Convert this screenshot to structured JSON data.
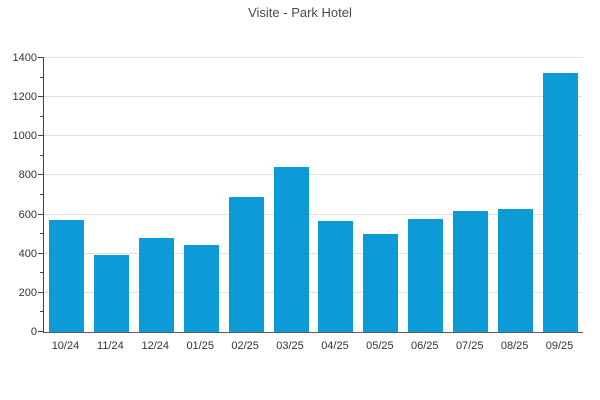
{
  "chart_data": {
    "type": "bar",
    "title": "Visite - Park Hotel",
    "categories": [
      "10/24",
      "11/24",
      "12/24",
      "01/25",
      "02/25",
      "03/25",
      "04/25",
      "05/25",
      "06/25",
      "07/25",
      "08/25",
      "09/25"
    ],
    "values": [
      570,
      395,
      480,
      445,
      690,
      845,
      565,
      500,
      575,
      620,
      630,
      1325
    ],
    "xlabel": "",
    "ylabel": "",
    "ylim": [
      0,
      1400
    ],
    "ytick_step": 200,
    "ytick_minor_step": 100,
    "ytick_labels": [
      "0",
      "200",
      "400",
      "600",
      "800",
      "1000",
      "1200",
      "1400"
    ],
    "grid": "horizontal-major-only",
    "legend": "none",
    "colors": {
      "bar": "#0d9bd8",
      "gridline": "#e1e1e1",
      "axis_line": "#424242",
      "text": "#333333",
      "title_text": "#4a4a4a",
      "background": "#ffffff"
    }
  }
}
